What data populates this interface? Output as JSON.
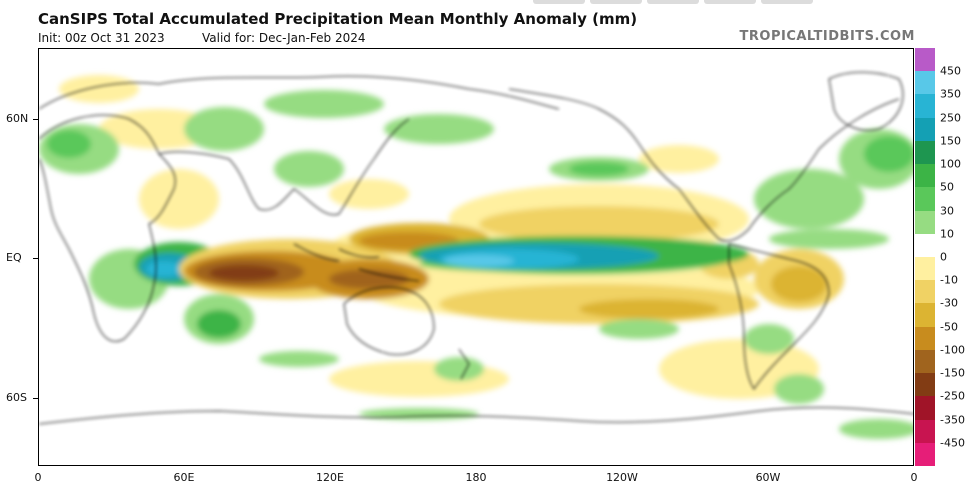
{
  "header": {
    "title": "CanSIPS Total Accumulated Precipitation Mean Monthly Anomaly (mm)",
    "init": "Init: 00z Oct 31 2023",
    "valid": "Valid for: Dec-Jan-Feb 2024",
    "site": "TROPICALTIDBITS.COM"
  },
  "map": {
    "lat_labels": [
      "60N",
      "EQ",
      "60S"
    ],
    "lon_labels": [
      "0",
      "60E",
      "120E",
      "180",
      "120W",
      "60W",
      "0"
    ],
    "projection": "equirectangular",
    "lon_range": [
      0,
      360
    ],
    "lat_range": [
      -90,
      90
    ],
    "overlay": "coastlines and political borders"
  },
  "colorbar": {
    "labels": [
      "450",
      "350",
      "250",
      "150",
      "100",
      "50",
      "30",
      "10",
      "0",
      "-10",
      "-30",
      "-50",
      "-100",
      "-150",
      "-250",
      "-350",
      "-450"
    ],
    "colors": [
      "#b85ac8",
      "#58c8e8",
      "#28b4d4",
      "#14a0b4",
      "#1e9650",
      "#3cb446",
      "#5ac85a",
      "#96dc82",
      "#ffffff",
      "#fff0a0",
      "#f0d264",
      "#dcb432",
      "#c88c1e",
      "#a0641e",
      "#823c14",
      "#a01428",
      "#c81450",
      "#e61e78"
    ],
    "orientation": "vertical",
    "placement": "right"
  }
}
